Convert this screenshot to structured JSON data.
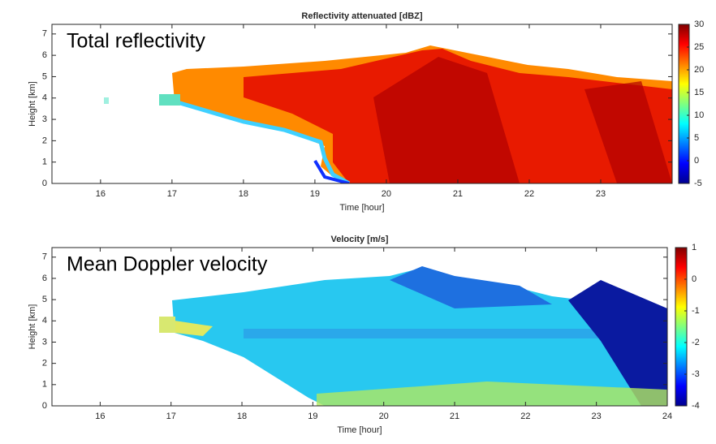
{
  "chart_data": [
    {
      "type": "heatmap",
      "title": "Reflectivity attenuated [dBZ]",
      "annotation": "Total reflectivity",
      "x_label": "Time [hour]",
      "y_label": "Height [km]",
      "xlim": [
        15.32,
        24
      ],
      "xticks": [
        16,
        17,
        18,
        19,
        20,
        21,
        22,
        23
      ],
      "ylim": [
        0,
        7.45
      ],
      "yticks": [
        0,
        1,
        2,
        3,
        4,
        5,
        6,
        7
      ],
      "colormap": "jet",
      "clim": [
        -5,
        30
      ],
      "cticks": [
        -5,
        0,
        5,
        10,
        15,
        20,
        25,
        30
      ]
    },
    {
      "type": "heatmap",
      "title": "Velocity [m/s]",
      "annotation": "Mean Doppler velocity",
      "x_label": "Time [hour]",
      "y_label": "Height [km]",
      "xlim": [
        15.32,
        24
      ],
      "xticks": [
        16,
        17,
        18,
        19,
        20,
        21,
        22,
        23,
        24
      ],
      "ylim": [
        0,
        7.45
      ],
      "yticks": [
        0,
        1,
        2,
        3,
        4,
        5,
        6,
        7
      ],
      "colormap": "jet",
      "clim": [
        -4,
        1
      ],
      "cticks": [
        -4,
        -3,
        -2,
        -1,
        0,
        1
      ]
    }
  ]
}
